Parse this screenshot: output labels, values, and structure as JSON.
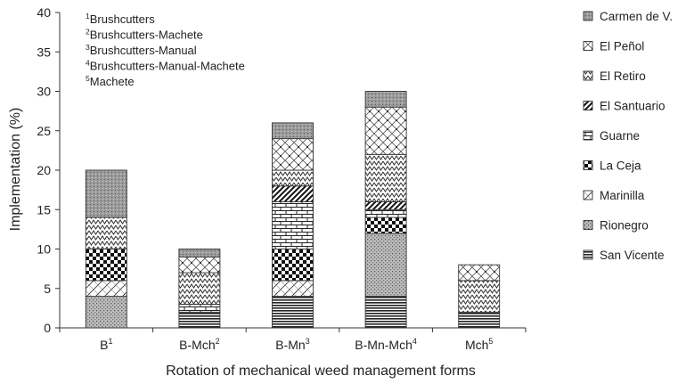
{
  "chart_data": {
    "type": "bar",
    "stacked": true,
    "xlabel": "Rotation of mechanical weed management forms",
    "ylabel": "Implementation (%)",
    "ylim": [
      0,
      40
    ],
    "yticks": [
      0,
      5,
      10,
      15,
      20,
      25,
      30,
      35,
      40
    ],
    "grid": false,
    "legend_position": "right",
    "categories": [
      {
        "label": "B",
        "sup": "1"
      },
      {
        "label": "B-Mch",
        "sup": "2"
      },
      {
        "label": "B-Mn",
        "sup": "3"
      },
      {
        "label": "B-Mn-Mch",
        "sup": "4"
      },
      {
        "label": "Mch",
        "sup": "5"
      }
    ],
    "series": [
      {
        "name": "San Vicente",
        "pattern": "hlines-dense",
        "values": [
          0,
          2,
          4,
          4,
          2
        ]
      },
      {
        "name": "Rionegro",
        "pattern": "dots-fine",
        "values": [
          4,
          0,
          0,
          8,
          0
        ]
      },
      {
        "name": "Marinilla",
        "pattern": "diag-hatch",
        "values": [
          2,
          0,
          2,
          0,
          0
        ]
      },
      {
        "name": "La Ceja",
        "pattern": "checker-bold",
        "values": [
          4,
          0,
          4,
          2,
          0
        ]
      },
      {
        "name": "Guarne",
        "pattern": "brick",
        "values": [
          0,
          1,
          6,
          1,
          0
        ]
      },
      {
        "name": "El Santuario",
        "pattern": "diag-stripes",
        "values": [
          0,
          0,
          2,
          1,
          0
        ]
      },
      {
        "name": "El Retiro",
        "pattern": "zigzag",
        "values": [
          4,
          4,
          2,
          6,
          4
        ]
      },
      {
        "name": "El Peñol",
        "pattern": "weave",
        "values": [
          0,
          2,
          4,
          6,
          2
        ]
      },
      {
        "name": "Carmen de V.",
        "pattern": "grey-stipple",
        "values": [
          6,
          1,
          2,
          2,
          0
        ]
      }
    ],
    "legend_order": [
      "Carmen de V.",
      "El Peñol",
      "El Retiro",
      "El Santuario",
      "Guarne",
      "La Ceja",
      "Marinilla",
      "Rionegro",
      "San Vicente"
    ],
    "annotations": [
      {
        "sup": "1",
        "text": "Brushcutters"
      },
      {
        "sup": "2",
        "text": "Brushcutters-Machete"
      },
      {
        "sup": "3",
        "text": "Brushcutters-Manual"
      },
      {
        "sup": "4",
        "text": "Brushcutters-Manual-Machete"
      },
      {
        "sup": "5",
        "text": "Machete"
      }
    ]
  }
}
